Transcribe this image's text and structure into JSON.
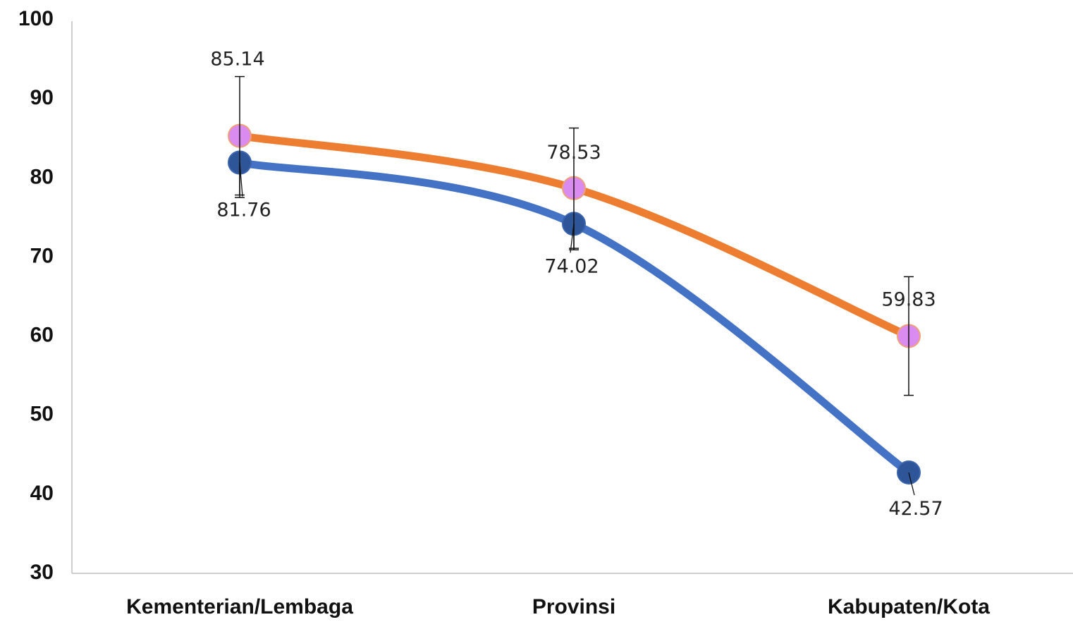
{
  "chart_data": {
    "type": "line",
    "categories": [
      "Kementerian/Lembaga",
      "Provinsi",
      "Kabupaten/Kota"
    ],
    "ylim": [
      30,
      100
    ],
    "yticks": [
      30,
      40,
      50,
      60,
      70,
      80,
      90,
      100
    ],
    "grid": false,
    "legend": "none",
    "series": [
      {
        "color": "#ED7D31",
        "marker_color": "#DA8BF0",
        "values": [
          85.14,
          78.53,
          59.83
        ],
        "labels": [
          "85.14",
          "78.53",
          "59.83"
        ],
        "error_low": [
          7.8,
          7.8,
          7.5
        ],
        "error_high": [
          7.5,
          7.6,
          7.5
        ]
      },
      {
        "color": "#4472C4",
        "marker_color": "#2E5597",
        "values": [
          81.76,
          74.02,
          42.57
        ],
        "labels": [
          "81.76",
          "74.02",
          "42.57"
        ],
        "error_low": [
          4.1,
          3.1,
          0
        ],
        "error_high": [
          0,
          0,
          0
        ]
      }
    ]
  }
}
